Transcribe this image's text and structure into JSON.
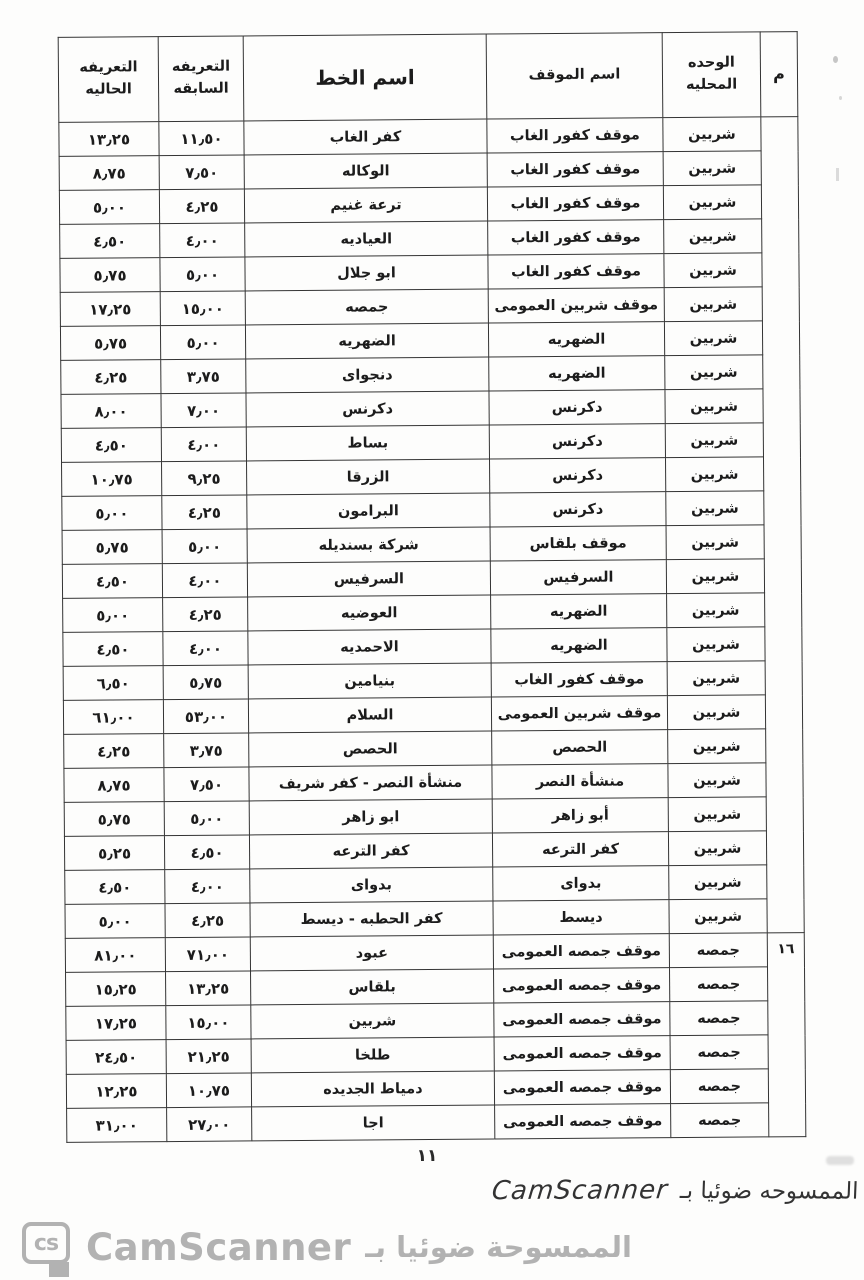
{
  "table": {
    "headers": {
      "serial": "م",
      "unit": "الوحده المحليه",
      "stop": "اسم الموقف",
      "line": "اسم الخط",
      "previous": "التعريفه السابقه",
      "current": "التعريفه الحاليه"
    },
    "sections": [
      {
        "serial": "",
        "rows": [
          {
            "current": "١٣٫٢٥",
            "previous": "١١٫٥٠",
            "line": "كفر الغاب",
            "stop": "موقف كفور الغاب",
            "unit": "شربين"
          },
          {
            "current": "٨٫٧٥",
            "previous": "٧٫٥٠",
            "line": "الوكاله",
            "stop": "موقف كفور الغاب",
            "unit": "شربين"
          },
          {
            "current": "٥٫٠٠",
            "previous": "٤٫٢٥",
            "line": "ترعة غنيم",
            "stop": "موقف كفور الغاب",
            "unit": "شربين"
          },
          {
            "current": "٤٫٥٠",
            "previous": "٤٫٠٠",
            "line": "العياديه",
            "stop": "موقف كفور الغاب",
            "unit": "شربين"
          },
          {
            "current": "٥٫٧٥",
            "previous": "٥٫٠٠",
            "line": "ابو جلال",
            "stop": "موقف كفور الغاب",
            "unit": "شربين"
          },
          {
            "current": "١٧٫٢٥",
            "previous": "١٥٫٠٠",
            "line": "جمصه",
            "stop": "موقف شربين العمومى",
            "unit": "شربين"
          },
          {
            "current": "٥٫٧٥",
            "previous": "٥٫٠٠",
            "line": "الضهريه",
            "stop": "الضهريه",
            "unit": "شربين"
          },
          {
            "current": "٤٫٢٥",
            "previous": "٣٫٧٥",
            "line": "دنجواى",
            "stop": "الضهريه",
            "unit": "شربين"
          },
          {
            "current": "٨٫٠٠",
            "previous": "٧٫٠٠",
            "line": "دكرنس",
            "stop": "دكرنس",
            "unit": "شربين"
          },
          {
            "current": "٤٫٥٠",
            "previous": "٤٫٠٠",
            "line": "بساط",
            "stop": "دكرنس",
            "unit": "شربين"
          },
          {
            "current": "١٠٫٧٥",
            "previous": "٩٫٢٥",
            "line": "الزرقا",
            "stop": "دكرنس",
            "unit": "شربين"
          },
          {
            "current": "٥٫٠٠",
            "previous": "٤٫٢٥",
            "line": "البرامون",
            "stop": "دكرنس",
            "unit": "شربين"
          },
          {
            "current": "٥٫٧٥",
            "previous": "٥٫٠٠",
            "line": "شركة بسنديله",
            "stop": "موقف بلقاس",
            "unit": "شربين"
          },
          {
            "current": "٤٫٥٠",
            "previous": "٤٫٠٠",
            "line": "السرفيس",
            "stop": "السرفيس",
            "unit": "شربين"
          },
          {
            "current": "٥٫٠٠",
            "previous": "٤٫٢٥",
            "line": "العوضيه",
            "stop": "الضهريه",
            "unit": "شربين"
          },
          {
            "current": "٤٫٥٠",
            "previous": "٤٫٠٠",
            "line": "الاحمديه",
            "stop": "الضهريه",
            "unit": "شربين"
          },
          {
            "current": "٦٫٥٠",
            "previous": "٥٫٧٥",
            "line": "بنيامين",
            "stop": "موقف كفور الغاب",
            "unit": "شربين"
          },
          {
            "current": "٦١٫٠٠",
            "previous": "٥٣٫٠٠",
            "line": "السلام",
            "stop": "موقف شربين العمومى",
            "unit": "شربين"
          },
          {
            "current": "٤٫٢٥",
            "previous": "٣٫٧٥",
            "line": "الحصص",
            "stop": "الحصص",
            "unit": "شربين"
          },
          {
            "current": "٨٫٧٥",
            "previous": "٧٫٥٠",
            "line": "منشأة النصر - كفر شريف",
            "stop": "منشأة النصر",
            "unit": "شربين"
          },
          {
            "current": "٥٫٧٥",
            "previous": "٥٫٠٠",
            "line": "ابو زاهر",
            "stop": "أبو زاهر",
            "unit": "شربين"
          },
          {
            "current": "٥٫٢٥",
            "previous": "٤٫٥٠",
            "line": "كفر الترعه",
            "stop": "كفر الترعه",
            "unit": "شربين"
          },
          {
            "current": "٤٫٥٠",
            "previous": "٤٫٠٠",
            "line": "بدواى",
            "stop": "بدواى",
            "unit": "شربين"
          },
          {
            "current": "٥٫٠٠",
            "previous": "٤٫٢٥",
            "line": "كفر الحطبه - ديسط",
            "stop": "ديسط",
            "unit": "شربين"
          }
        ]
      },
      {
        "serial": "١٦",
        "rows": [
          {
            "current": "٨١٫٠٠",
            "previous": "٧١٫٠٠",
            "line": "عبود",
            "stop": "موقف جمصه العمومى",
            "unit": "جمصه"
          },
          {
            "current": "١٥٫٢٥",
            "previous": "١٣٫٢٥",
            "line": "بلقاس",
            "stop": "موقف جمصه العمومى",
            "unit": "جمصه"
          },
          {
            "current": "١٧٫٢٥",
            "previous": "١٥٫٠٠",
            "line": "شربين",
            "stop": "موقف جمصه العمومى",
            "unit": "جمصه"
          },
          {
            "current": "٢٤٫٥٠",
            "previous": "٢١٫٢٥",
            "line": "طلخا",
            "stop": "موقف جمصه العمومى",
            "unit": "جمصه"
          },
          {
            "current": "١٢٫٢٥",
            "previous": "١٠٫٧٥",
            "line": "دمياط الجديده",
            "stop": "موقف جمصه العمومى",
            "unit": "جمصه"
          },
          {
            "current": "٣١٫٠٠",
            "previous": "٢٧٫٠٠",
            "line": "اجا",
            "stop": "موقف جمصه العمومى",
            "unit": "جمصه"
          }
        ]
      }
    ]
  },
  "footer": {
    "page_number": "١١",
    "handwritten": {
      "arabic": "الممسوحه ضوئيا بـ",
      "brand": "CamScanner"
    },
    "watermark": {
      "arabic": "الممسوحة ضوئيا بـ",
      "brand": "CamScanner",
      "logo_text": "cs"
    }
  },
  "colors": {
    "paper": "#fdfdfc",
    "ink": "#1c1c1c",
    "table_line": "#343434",
    "watermark_grey": "#b2b2b2"
  }
}
